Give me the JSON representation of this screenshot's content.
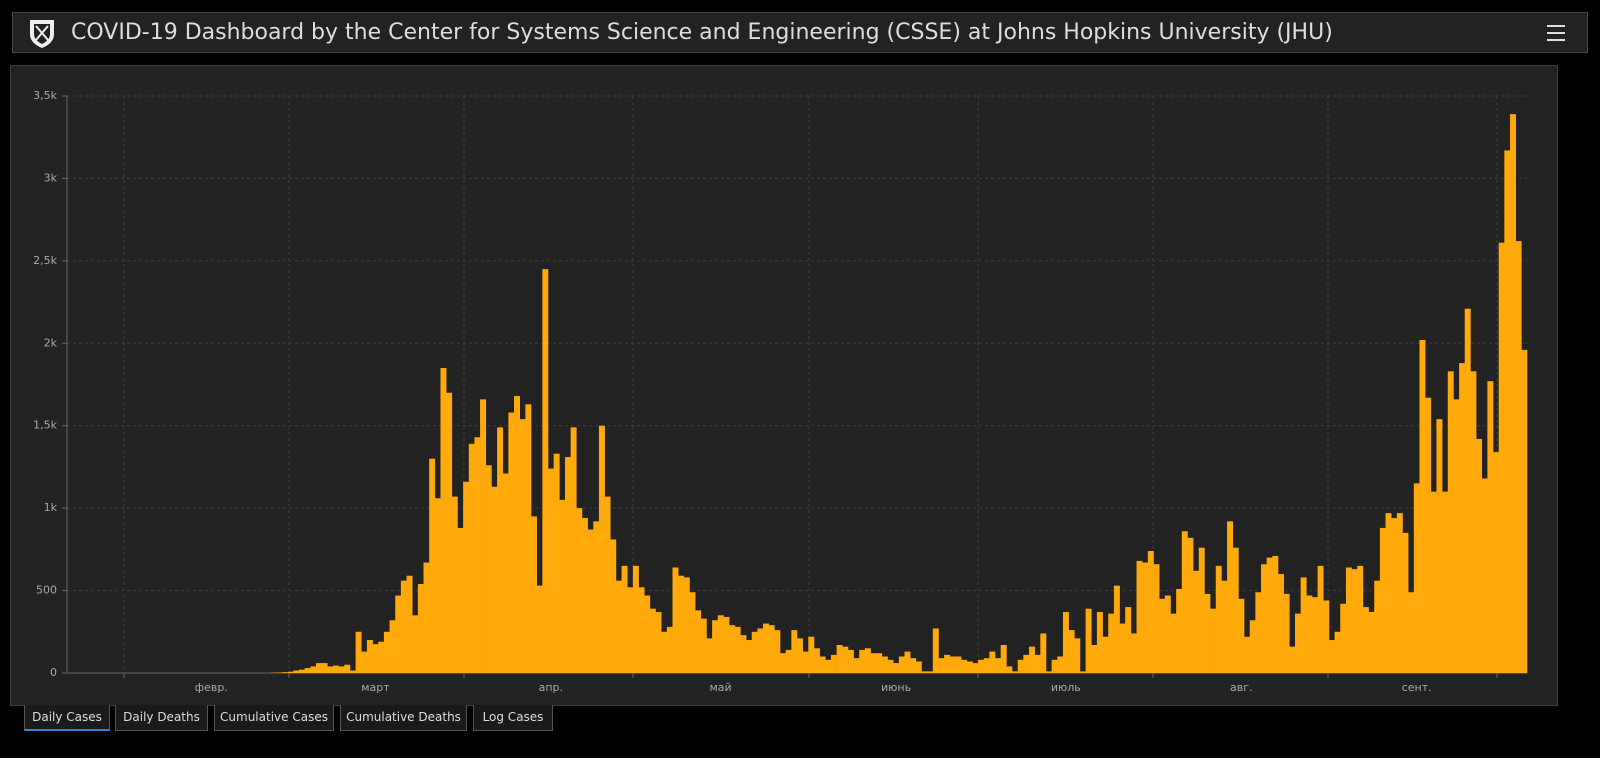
{
  "header": {
    "title": "COVID-19 Dashboard by the Center for Systems Science and Engineering (CSSE) at Johns Hopkins University (JHU)"
  },
  "chart_data": {
    "type": "bar",
    "color": "#ffa90a",
    "grid": true,
    "ylim": [
      0,
      3500
    ],
    "yticks": [
      0,
      500,
      {
        "value": 1000,
        "label": "1k"
      },
      {
        "value": 1500,
        "label": "1,5k"
      },
      {
        "value": 2000,
        "label": "2k"
      },
      {
        "value": 2500,
        "label": "2,5k"
      },
      {
        "value": 3000,
        "label": "3k"
      },
      {
        "value": 3500,
        "label": "3,5k"
      }
    ],
    "categories": [
      null,
      null,
      null,
      null,
      null,
      null,
      null,
      null,
      null,
      null,
      null,
      null,
      null,
      null,
      null,
      null,
      null,
      null,
      null,
      null,
      null,
      null,
      null,
      null,
      null,
      "февр.",
      null,
      null,
      null,
      null,
      null,
      null,
      null,
      null,
      null,
      null,
      null,
      null,
      null,
      null,
      null,
      null,
      null,
      null,
      null,
      null,
      null,
      null,
      null,
      null,
      null,
      null,
      null,
      null,
      "март",
      null,
      null,
      null,
      null,
      null,
      null,
      null,
      null,
      null,
      null,
      null,
      null,
      null,
      null,
      null,
      null,
      null,
      null,
      null,
      null,
      null,
      null,
      null,
      null,
      null,
      null,
      null,
      null,
      null,
      null,
      "апр.",
      null,
      null,
      null,
      null,
      null,
      null,
      null,
      null,
      null,
      null,
      null,
      null,
      null,
      null,
      null,
      null,
      null,
      null,
      null,
      null,
      null,
      null,
      null,
      null,
      null,
      null,
      null,
      null,
      null,
      "май",
      null,
      null,
      null,
      null,
      null,
      null,
      null,
      null,
      null,
      null,
      null,
      null,
      null,
      null,
      null,
      null,
      null,
      null,
      null,
      null,
      null,
      null,
      null,
      null,
      null,
      null,
      null,
      null,
      null,
      null,
      "июнь",
      null,
      null,
      null,
      null,
      null,
      null,
      null,
      null,
      null,
      null,
      null,
      null,
      null,
      null,
      null,
      null,
      null,
      null,
      null,
      null,
      null,
      null,
      null,
      null,
      null,
      null,
      null,
      null,
      null,
      "июль",
      null,
      null,
      null,
      null,
      null,
      null,
      null,
      null,
      null,
      null,
      null,
      null,
      null,
      null,
      null,
      null,
      null,
      null,
      null,
      null,
      null,
      null,
      null,
      null,
      null,
      null,
      null,
      null,
      null,
      null,
      "авг.",
      null,
      null,
      null,
      null,
      null,
      null,
      null,
      null,
      null,
      null,
      null,
      null,
      null,
      null,
      null,
      null,
      null,
      null,
      null,
      null,
      null,
      null,
      null,
      null,
      null,
      null,
      null,
      null,
      null,
      null,
      "сент.",
      null,
      null,
      null,
      null,
      null,
      null,
      null,
      null,
      null,
      null,
      null,
      null,
      null,
      null,
      null,
      null,
      null,
      null,
      null
    ],
    "values": [
      0,
      0,
      0,
      0,
      0,
      0,
      0,
      0,
      0,
      0,
      0,
      0,
      0,
      0,
      0,
      0,
      0,
      0,
      0,
      0,
      0,
      0,
      0,
      0,
      0,
      0,
      0,
      0,
      0,
      0,
      0,
      0,
      0,
      0,
      0,
      0,
      2,
      3,
      5,
      8,
      15,
      20,
      30,
      40,
      60,
      60,
      40,
      45,
      40,
      50,
      15,
      250,
      130,
      200,
      175,
      190,
      250,
      320,
      470,
      560,
      590,
      350,
      540,
      670,
      1300,
      1060,
      1850,
      1700,
      1070,
      880,
      1160,
      1390,
      1430,
      1660,
      1260,
      1130,
      1490,
      1210,
      1580,
      1680,
      1540,
      1630,
      950,
      530,
      2450,
      1240,
      1330,
      1050,
      1310,
      1490,
      1000,
      940,
      870,
      920,
      1500,
      1070,
      810,
      560,
      650,
      520,
      650,
      520,
      470,
      390,
      370,
      250,
      280,
      640,
      590,
      580,
      490,
      380,
      330,
      210,
      320,
      350,
      340,
      290,
      280,
      230,
      200,
      250,
      270,
      300,
      290,
      260,
      120,
      140,
      260,
      210,
      130,
      220,
      150,
      100,
      80,
      110,
      170,
      160,
      140,
      90,
      140,
      150,
      120,
      120,
      100,
      80,
      60,
      100,
      130,
      90,
      70,
      10,
      10,
      270,
      90,
      110,
      100,
      100,
      80,
      70,
      60,
      80,
      90,
      130,
      90,
      170,
      40,
      10,
      80,
      110,
      160,
      110,
      240,
      10,
      80,
      100,
      370,
      260,
      210,
      10,
      390,
      170,
      370,
      220,
      360,
      530,
      300,
      400,
      240,
      680,
      670,
      740,
      660,
      450,
      470,
      360,
      510,
      860,
      820,
      620,
      760,
      480,
      390,
      650,
      560,
      920,
      760,
      450,
      220,
      320,
      490,
      660,
      700,
      710,
      600,
      480,
      160,
      360,
      580,
      470,
      460,
      650,
      440,
      200,
      250,
      420,
      640,
      630,
      650,
      400,
      370,
      560,
      880,
      970,
      940,
      970,
      850,
      490,
      1150,
      2020,
      1670,
      1100,
      1540,
      1100,
      1830,
      1660,
      1880,
      2210,
      1830,
      1420,
      1180,
      1770,
      1340,
      2610,
      3170,
      3390,
      2620,
      1960
    ]
  },
  "tabs": [
    "Daily Cases",
    "Daily Deaths",
    "Cumulative Cases",
    "Cumulative Deaths",
    "Log Cases"
  ]
}
